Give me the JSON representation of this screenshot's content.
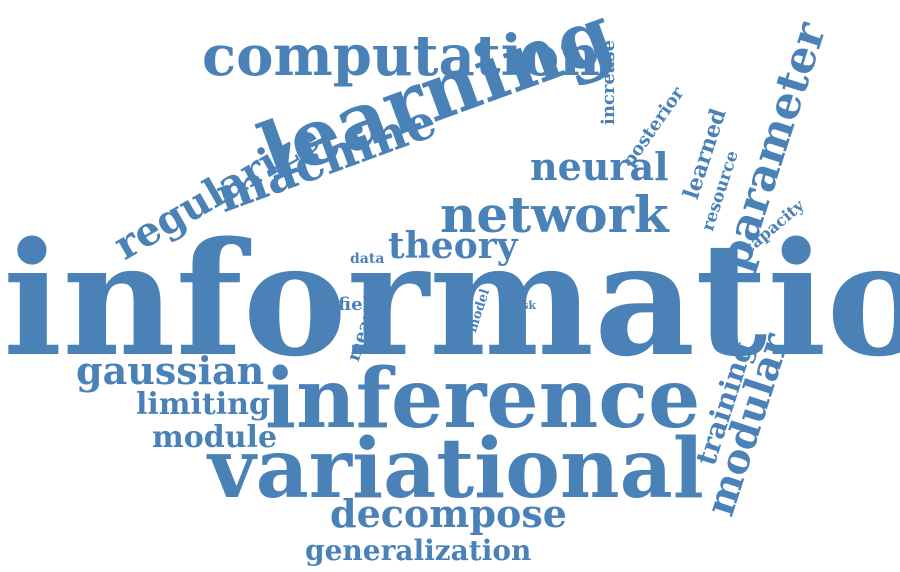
{
  "accent_color": "#4a82b8",
  "words": [
    {
      "id": "information",
      "text": "information",
      "weight": 1.0,
      "orientation": "horizontal"
    },
    {
      "id": "inference",
      "text": "inference",
      "weight": 0.55,
      "orientation": "horizontal"
    },
    {
      "id": "variational",
      "text": "variational",
      "weight": 0.55,
      "orientation": "horizontal"
    },
    {
      "id": "learning",
      "text": "learning",
      "weight": 0.55,
      "orientation": "rotated"
    },
    {
      "id": "computation",
      "text": "computation",
      "weight": 0.4,
      "orientation": "horizontal"
    },
    {
      "id": "network",
      "text": "network",
      "weight": 0.38,
      "orientation": "horizontal"
    },
    {
      "id": "machine",
      "text": "machine",
      "weight": 0.38,
      "orientation": "rotated"
    },
    {
      "id": "parameter",
      "text": "parameter",
      "weight": 0.34,
      "orientation": "rotated"
    },
    {
      "id": "modular",
      "text": "modular",
      "weight": 0.3,
      "orientation": "rotated"
    },
    {
      "id": "regularize",
      "text": "regularize",
      "weight": 0.3,
      "orientation": "rotated"
    },
    {
      "id": "decompose",
      "text": "decompose",
      "weight": 0.28,
      "orientation": "horizontal"
    },
    {
      "id": "theory",
      "text": "theory",
      "weight": 0.26,
      "orientation": "horizontal"
    },
    {
      "id": "gaussian",
      "text": "gaussian",
      "weight": 0.26,
      "orientation": "horizontal"
    },
    {
      "id": "neural",
      "text": "neural",
      "weight": 0.24,
      "orientation": "horizontal"
    },
    {
      "id": "generalization",
      "text": "generalization",
      "weight": 0.22,
      "orientation": "horizontal"
    },
    {
      "id": "module",
      "text": "module",
      "weight": 0.22,
      "orientation": "horizontal"
    },
    {
      "id": "limiting",
      "text": "limiting",
      "weight": 0.22,
      "orientation": "horizontal"
    },
    {
      "id": "training",
      "text": "training",
      "weight": 0.2,
      "orientation": "rotated"
    },
    {
      "id": "learned",
      "text": "learned",
      "weight": 0.14,
      "orientation": "rotated"
    },
    {
      "id": "increase",
      "text": "increase",
      "weight": 0.12,
      "orientation": "vertical"
    },
    {
      "id": "posterior",
      "text": "posterior",
      "weight": 0.12,
      "orientation": "rotated"
    },
    {
      "id": "resource",
      "text": "resource",
      "weight": 0.11,
      "orientation": "rotated"
    },
    {
      "id": "capacity",
      "text": "capacity",
      "weight": 0.1,
      "orientation": "rotated"
    },
    {
      "id": "field",
      "text": "field",
      "weight": 0.11,
      "orientation": "horizontal"
    },
    {
      "id": "mean",
      "text": "mean",
      "weight": 0.11,
      "orientation": "rotated"
    },
    {
      "id": "data",
      "text": "data",
      "weight": 0.09,
      "orientation": "horizontal"
    },
    {
      "id": "model",
      "text": "model",
      "weight": 0.08,
      "orientation": "rotated"
    },
    {
      "id": "task",
      "text": "task",
      "weight": 0.07,
      "orientation": "horizontal"
    }
  ]
}
